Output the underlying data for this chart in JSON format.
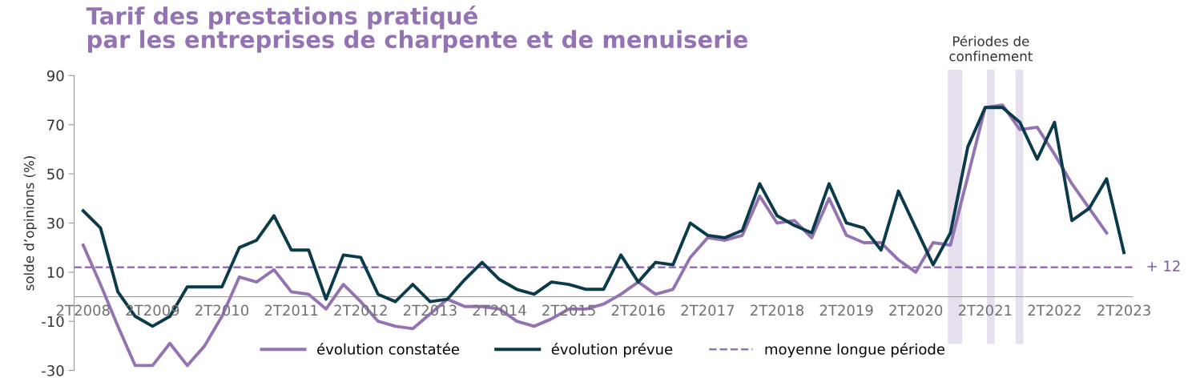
{
  "chart_data": {
    "type": "line",
    "title": "Tarif des prestations pratiqué\npar les entreprises de charpente et de menuiserie",
    "ylabel": "solde d’opinions (%)",
    "categories": [
      "2T2008",
      null,
      null,
      null,
      "2T2009",
      null,
      null,
      null,
      "2T2010",
      null,
      null,
      null,
      "2T2011",
      null,
      null,
      null,
      "2T2012",
      null,
      null,
      null,
      "2T2013",
      null,
      null,
      null,
      "2T2014",
      null,
      null,
      null,
      "2T2015",
      null,
      null,
      null,
      "2T2016",
      null,
      null,
      null,
      "2T2017",
      null,
      null,
      null,
      "2T2018",
      null,
      null,
      null,
      "2T2019",
      null,
      null,
      null,
      "2T2020",
      null,
      null,
      null,
      "2T2021",
      null,
      null,
      null,
      "2T2022",
      null,
      null,
      null,
      "2T2023"
    ],
    "series": [
      {
        "name": "évolution constatée",
        "color": "#9473b3",
        "values": [
          21,
          5,
          -12,
          -28,
          -28,
          -19,
          -28,
          -20,
          -8,
          8,
          6,
          11,
          2,
          1,
          -5,
          5,
          -2,
          -10,
          -12,
          -13,
          -7,
          -1,
          -4,
          -4,
          -5,
          -10,
          -12,
          -9,
          -5,
          -5,
          -3,
          1,
          6,
          1,
          3,
          16,
          24,
          23,
          25,
          41,
          30,
          31,
          24,
          40,
          25,
          22,
          22,
          15,
          10,
          22,
          21,
          49,
          77,
          78,
          68,
          69,
          58,
          46,
          36,
          26,
          null
        ]
      },
      {
        "name": "évolution prévue",
        "color": "#0b3a4a",
        "values": [
          35,
          28,
          2,
          -8,
          -12,
          -8,
          4,
          4,
          4,
          20,
          23,
          33,
          19,
          19,
          -1,
          17,
          16,
          1,
          -2,
          5,
          -2,
          -1,
          7,
          14,
          7,
          3,
          1,
          6,
          5,
          3,
          3,
          17,
          6,
          14,
          13,
          30,
          25,
          24,
          27,
          46,
          33,
          29,
          26,
          46,
          30,
          28,
          19,
          43,
          28,
          13,
          26,
          61,
          77,
          77,
          71,
          56,
          71,
          31,
          36,
          48,
          18
        ]
      }
    ],
    "ylim": [
      -30,
      90
    ],
    "yticks": [
      -30,
      -10,
      10,
      30,
      50,
      70,
      90
    ],
    "ref_lines": [
      {
        "axis": "y",
        "value": 12,
        "label": "moyenne longue période",
        "color": "#9473b3",
        "line_style": "dashed"
      }
    ],
    "annotations": [
      "+ 12",
      "Périodes de\nconfinement"
    ],
    "legend": "bottom",
    "grid": false,
    "line_style": "solid",
    "marker": "none"
  }
}
